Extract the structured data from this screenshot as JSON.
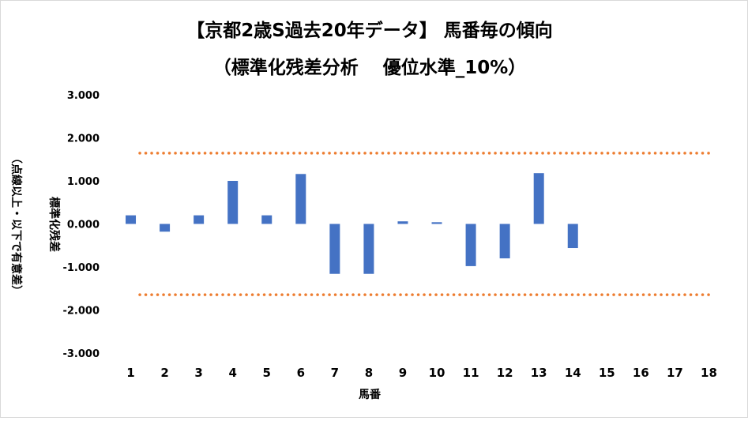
{
  "chart_data": {
    "type": "bar",
    "title_line1": "【京都2歳S過去20年データ】 馬番毎の傾向",
    "title_line2": "（標準化残差分析　 優位水準_10%）",
    "xlabel": "馬番",
    "ylabel_line1": "標準化残差",
    "ylabel_line2": "（点線以上・以下で有意差）",
    "categories": [
      "1",
      "2",
      "3",
      "4",
      "5",
      "6",
      "7",
      "8",
      "9",
      "10",
      "11",
      "12",
      "13",
      "14",
      "15",
      "16",
      "17",
      "18"
    ],
    "series": [
      {
        "values": [
          0.2,
          -0.18,
          0.2,
          1.0,
          0.2,
          1.16,
          -1.16,
          -1.16,
          0.06,
          0.04,
          -0.98,
          -0.8,
          1.18,
          -0.56,
          null,
          null,
          null,
          null
        ],
        "color": "#4472c4"
      }
    ],
    "thresholds": [
      1.645,
      -1.645
    ],
    "threshold_color": "#ed7d31",
    "ylim": [
      -3,
      3
    ],
    "yticks": [
      3,
      2,
      1,
      0,
      -1,
      -2,
      -3
    ],
    "ytick_labels": [
      "3.000",
      "2.000",
      "1.000",
      "0.000",
      "-1.000",
      "-2.000",
      "-3.000"
    ],
    "grid": false,
    "legend": "none"
  }
}
